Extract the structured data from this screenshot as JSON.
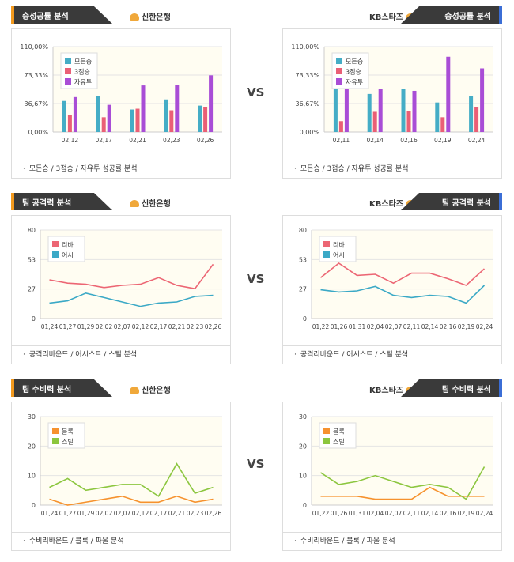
{
  "vs_label": "VS",
  "colors": {
    "blue": "#45adc6",
    "pink": "#ea5f76",
    "purple": "#a94dd6",
    "red": "#ec6674",
    "teal": "#3ba9c6",
    "orange": "#f6922e",
    "green": "#8cc63f",
    "tab_dark": "#3a3a3a",
    "accent_orange": "#f39a1e",
    "accent_blue": "#3b6ed6"
  },
  "teams": {
    "left": "신한은행",
    "right": "KB스타즈"
  },
  "sections": [
    {
      "title": "승성공률 분석",
      "footer": "모든승 / 3점승 / 자유투 성공률 분석"
    },
    {
      "title": "팀 공격력 분석",
      "footer": "공격리바운드 / 어시스트 / 스틸 분석"
    },
    {
      "title": "팀 수비력 분석",
      "footer": "수비리바운드 / 블록 / 파울 분석"
    }
  ],
  "chart_data": [
    {
      "id": "shinhan-success",
      "type": "bar",
      "categories": [
        "02,12",
        "02,17",
        "02,21",
        "02,23",
        "02,26"
      ],
      "ylim": [
        0,
        110
      ],
      "yticks": [
        "0,00%",
        "36,67%",
        "73,33%",
        "110,00%"
      ],
      "series": [
        {
          "name": "모든승",
          "values": [
            40,
            46,
            29,
            42,
            34
          ]
        },
        {
          "name": "3점승",
          "values": [
            22,
            19,
            30,
            28,
            32
          ]
        },
        {
          "name": "자유투",
          "values": [
            45,
            35,
            60,
            61,
            73
          ]
        }
      ]
    },
    {
      "id": "kb-success",
      "type": "bar",
      "categories": [
        "02,11",
        "02,14",
        "02,16",
        "02,19",
        "02,24"
      ],
      "ylim": [
        0,
        110
      ],
      "yticks": [
        "0,00%",
        "36,67%",
        "73,33%",
        "110,00%"
      ],
      "series": [
        {
          "name": "모든승",
          "values": [
            57,
            49,
            55,
            38,
            46
          ]
        },
        {
          "name": "3점승",
          "values": [
            14,
            26,
            27,
            19,
            32
          ]
        },
        {
          "name": "자유투",
          "values": [
            60,
            55,
            53,
            97,
            82
          ]
        }
      ]
    },
    {
      "id": "shinhan-offense",
      "type": "line",
      "categories": [
        "01,24",
        "01,27",
        "01,29",
        "02,02",
        "02,07",
        "02,12",
        "02,17",
        "02,21",
        "02,23",
        "02,26"
      ],
      "ylim": [
        0,
        80
      ],
      "yticks": [
        "0",
        "27",
        "53",
        "80"
      ],
      "series": [
        {
          "name": "리바",
          "values": [
            35,
            32,
            31,
            28,
            30,
            31,
            37,
            30,
            27,
            49
          ]
        },
        {
          "name": "어시",
          "values": [
            14,
            16,
            23,
            19,
            15,
            11,
            14,
            15,
            20,
            21
          ]
        }
      ]
    },
    {
      "id": "kb-offense",
      "type": "line",
      "categories": [
        "01,22",
        "01,26",
        "01,31",
        "02,04",
        "02,07",
        "02,11",
        "02,14",
        "02,16",
        "02,19",
        "02,24"
      ],
      "ylim": [
        0,
        80
      ],
      "yticks": [
        "0",
        "27",
        "53",
        "80"
      ],
      "series": [
        {
          "name": "리바",
          "values": [
            37,
            50,
            39,
            40,
            32,
            41,
            41,
            36,
            30,
            45
          ]
        },
        {
          "name": "어시",
          "values": [
            26,
            24,
            25,
            29,
            21,
            19,
            21,
            20,
            14,
            30
          ]
        }
      ]
    },
    {
      "id": "shinhan-defense",
      "type": "line",
      "categories": [
        "01,24",
        "01,27",
        "01,29",
        "02,02",
        "02,07",
        "02,12",
        "02,17",
        "02,21",
        "02,23",
        "02,26"
      ],
      "ylim": [
        0,
        30
      ],
      "yticks": [
        "0",
        "10",
        "20",
        "30"
      ],
      "series": [
        {
          "name": "블록",
          "values": [
            2,
            0,
            1,
            2,
            3,
            1,
            1,
            3,
            1,
            2
          ]
        },
        {
          "name": "스틸",
          "values": [
            6,
            9,
            5,
            6,
            7,
            7,
            3,
            14,
            4,
            6
          ]
        }
      ]
    },
    {
      "id": "kb-defense",
      "type": "line",
      "categories": [
        "01,22",
        "01,26",
        "01,31",
        "02,04",
        "02,07",
        "02,11",
        "02,14",
        "02,16",
        "02,19",
        "02,24"
      ],
      "ylim": [
        0,
        30
      ],
      "yticks": [
        "0",
        "10",
        "20",
        "30"
      ],
      "series": [
        {
          "name": "블록",
          "values": [
            3,
            3,
            3,
            2,
            2,
            2,
            6,
            3,
            3,
            3
          ]
        },
        {
          "name": "스틸",
          "values": [
            11,
            7,
            8,
            10,
            8,
            6,
            7,
            6,
            2,
            13
          ]
        }
      ]
    }
  ]
}
